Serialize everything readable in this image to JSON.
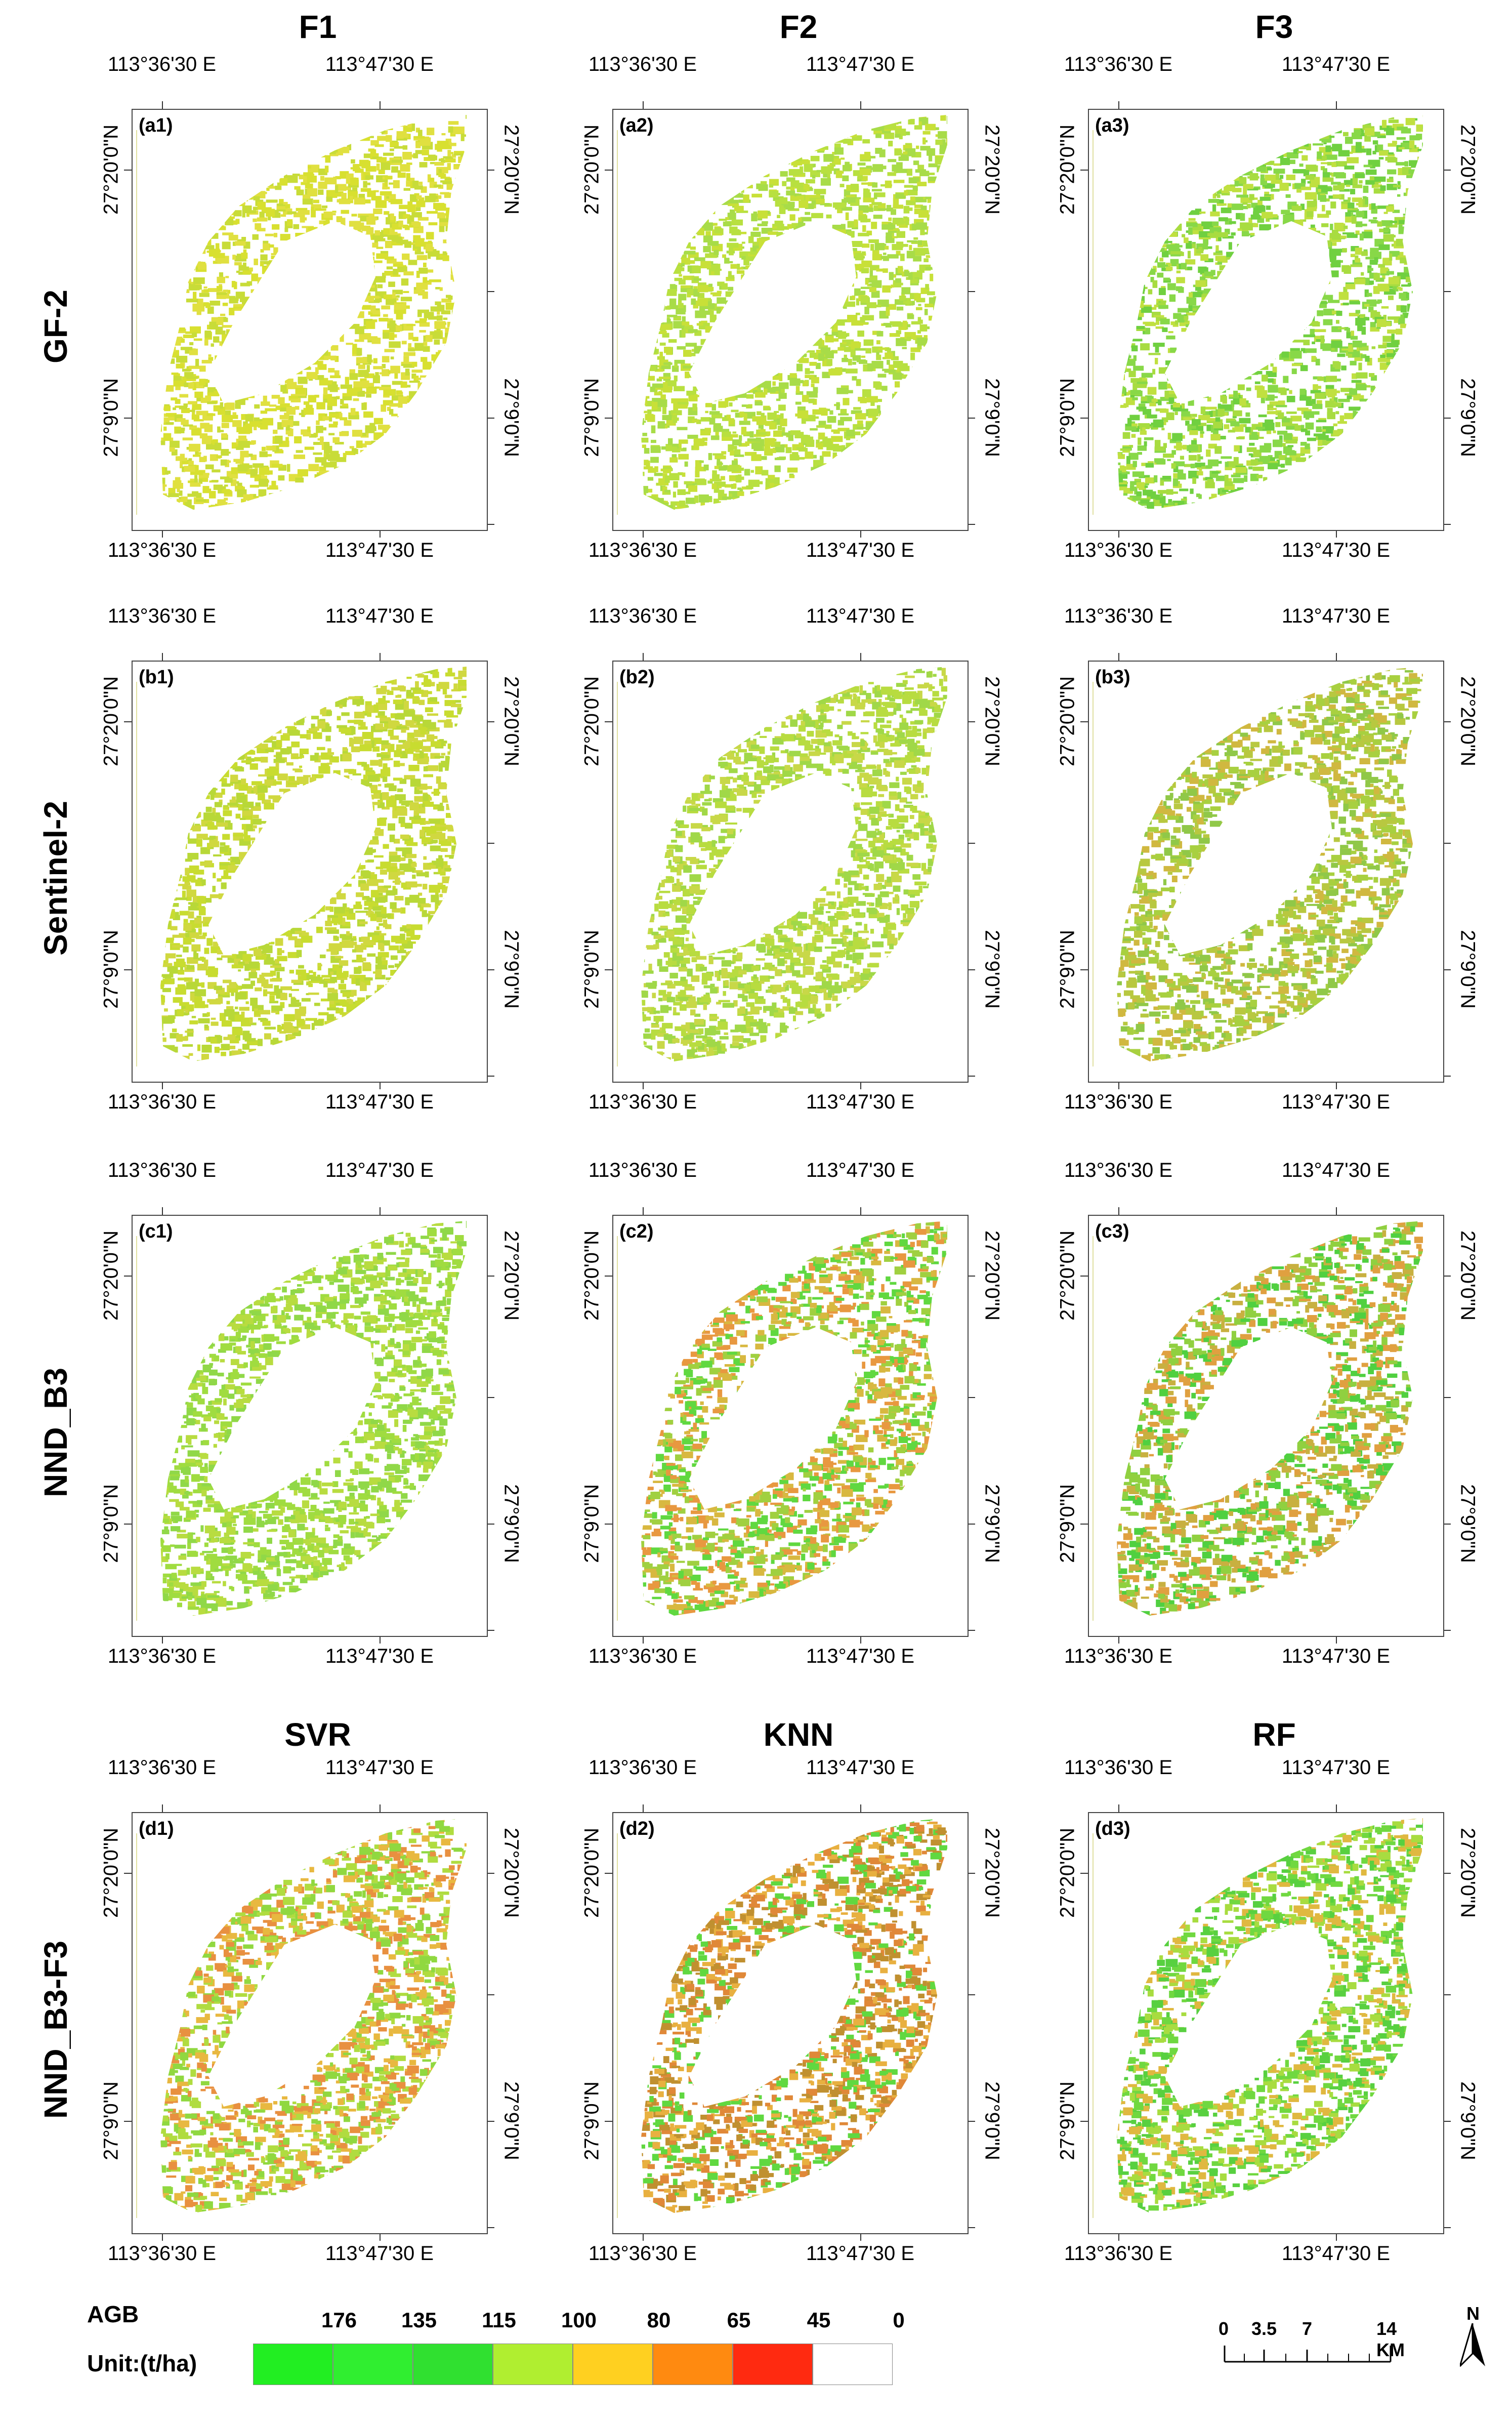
{
  "columns": [
    "F1",
    "F2",
    "F3"
  ],
  "bottom_columns": [
    "SVR",
    "KNN",
    "RF"
  ],
  "rows": [
    "GF-2",
    "Sentinel-2",
    "NND_B3",
    "NND_B3-F3"
  ],
  "axis": {
    "lon_left": "113°36'30 E",
    "lon_right": "113°47'30 E",
    "lat_top": "27°20'0\"N",
    "lat_bottom": "27°9'0\"N"
  },
  "panels": [
    {
      "label": "(a1)",
      "palette": "a1"
    },
    {
      "label": "(a2)",
      "palette": "a2"
    },
    {
      "label": "(a3)",
      "palette": "a3"
    },
    {
      "label": "(b1)",
      "palette": "b1"
    },
    {
      "label": "(b2)",
      "palette": "b2"
    },
    {
      "label": "(b3)",
      "palette": "b3"
    },
    {
      "label": "(c1)",
      "palette": "c1"
    },
    {
      "label": "(c2)",
      "palette": "c2"
    },
    {
      "label": "(c3)",
      "palette": "c3"
    },
    {
      "label": "(d1)",
      "palette": "d1"
    },
    {
      "label": "(d2)",
      "palette": "d2"
    },
    {
      "label": "(d3)",
      "palette": "d3"
    }
  ],
  "palettes": {
    "a1": [
      "#d8e030",
      "#c8dc38",
      "#e0e040"
    ],
    "a2": [
      "#b8e040",
      "#c8e038",
      "#a8dc48"
    ],
    "a3": [
      "#88d848",
      "#a8dc40",
      "#c0e040",
      "#70d040"
    ],
    "b1": [
      "#c8dc30",
      "#b8d838",
      "#d0d840"
    ],
    "b2": [
      "#a0d848",
      "#b8dc40",
      "#c8d848"
    ],
    "b3": [
      "#b8c840",
      "#d0b840",
      "#90c848",
      "#a8d040"
    ],
    "c1": [
      "#a0dc40",
      "#90d848",
      "#b8dc40"
    ],
    "c2": [
      "#60d840",
      "#d8b840",
      "#e89840",
      "#a0d040"
    ],
    "c3": [
      "#50d040",
      "#c8b040",
      "#e0a040",
      "#90d040"
    ],
    "d1": [
      "#b0dc40",
      "#e8b840",
      "#e89040",
      "#90d840"
    ],
    "d2": [
      "#60d840",
      "#e8b040",
      "#e08838",
      "#c09030"
    ],
    "d3": [
      "#70d840",
      "#a8dc40",
      "#e0b840",
      "#58d040"
    ]
  },
  "legend": {
    "title": "AGB",
    "unit": "Unit:(t/ha)",
    "values": [
      "176",
      "135",
      "115",
      "100",
      "80",
      "65",
      "45",
      "0"
    ],
    "colors": [
      "#22ee22",
      "#30ee30",
      "#30e030",
      "#b0ee30",
      "#ffd020",
      "#ff8a10",
      "#ff2a10",
      "#ffffff"
    ]
  },
  "scale_bar": {
    "labels": [
      "0",
      "3.5",
      "7",
      "14 KM"
    ]
  },
  "north_arrow": {
    "label": "N"
  }
}
